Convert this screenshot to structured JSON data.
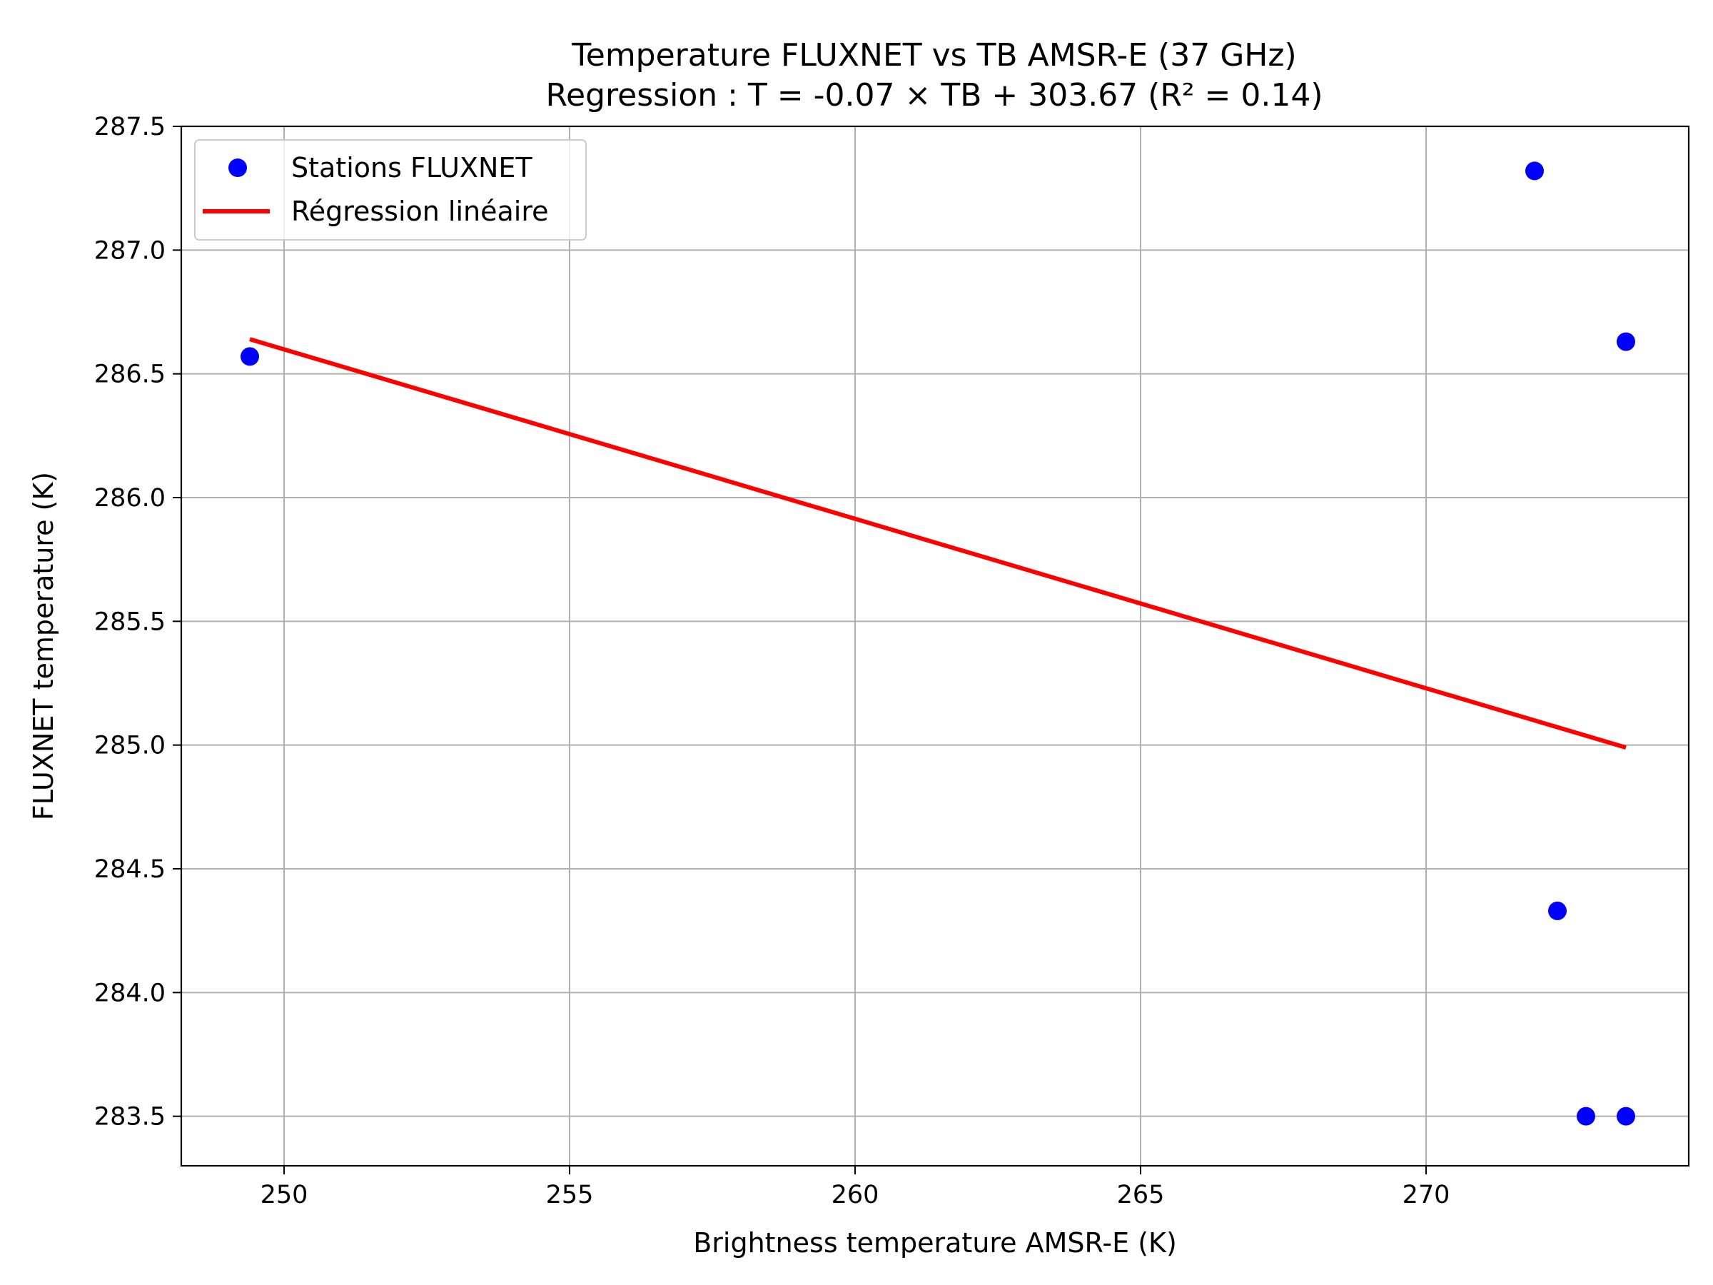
{
  "chart_data": {
    "type": "scatter",
    "title": "Temperature FLUXNET vs TB AMSR-E (37 GHz)",
    "subtitle": "Regression : T = -0.07 × TB + 303.67 (R² = 0.14)",
    "xlabel": "Brightness temperature AMSR-E (K)",
    "ylabel": "FLUXNET temperature (K)",
    "xlim": [
      248.2,
      274.6
    ],
    "ylim": [
      283.3,
      287.5
    ],
    "xticks": [
      250,
      255,
      260,
      265,
      270
    ],
    "yticks": [
      283.5,
      284.0,
      284.5,
      285.0,
      285.5,
      286.0,
      286.5,
      287.0,
      287.5
    ],
    "xtick_labels": [
      "250",
      "255",
      "260",
      "265",
      "270"
    ],
    "ytick_labels": [
      "283.5",
      "284.0",
      "284.5",
      "285.0",
      "285.5",
      "286.0",
      "286.5",
      "287.0",
      "287.5"
    ],
    "grid": true,
    "legend_position": "top-left",
    "series": [
      {
        "name": "Stations FLUXNET",
        "kind": "scatter",
        "color": "#0000ff",
        "points": [
          {
            "x": 249.4,
            "y": 286.57
          },
          {
            "x": 271.9,
            "y": 287.32
          },
          {
            "x": 273.5,
            "y": 286.63
          },
          {
            "x": 272.3,
            "y": 284.33
          },
          {
            "x": 272.8,
            "y": 283.5
          },
          {
            "x": 273.5,
            "y": 283.5
          }
        ]
      },
      {
        "name": "Régression linéaire",
        "kind": "line",
        "color": "#ff0000",
        "points": [
          {
            "x": 249.4,
            "y": 286.64
          },
          {
            "x": 273.5,
            "y": 284.99
          }
        ]
      }
    ]
  }
}
